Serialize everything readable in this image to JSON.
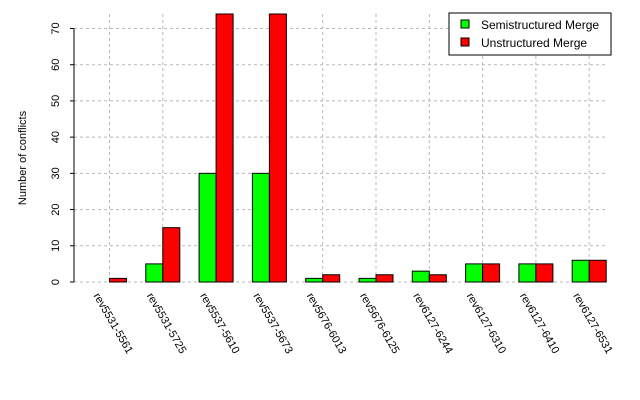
{
  "chart_data": {
    "type": "bar",
    "categories": [
      "rev5531-5561",
      "rev5531-5725",
      "rev5537-5610",
      "rev5537-5673",
      "rev5676-6013",
      "rev5676-6125",
      "rev6127-6244",
      "rev6127-6310",
      "rev6127-6410",
      "rev6127-6531"
    ],
    "series": [
      {
        "name": "Semistructured Merge",
        "color": "#00ff00",
        "values": [
          0,
          5,
          30,
          30,
          1,
          1,
          3,
          5,
          5,
          6
        ]
      },
      {
        "name": "Unstructured Merge",
        "color": "#ff0000",
        "values": [
          1,
          15,
          74,
          74,
          2,
          2,
          2,
          5,
          5,
          6
        ]
      }
    ],
    "ylabel": "Number of conflicts",
    "xlabel": "",
    "ylim": [
      0,
      74
    ],
    "yticks": [
      0,
      10,
      20,
      30,
      40,
      50,
      60,
      70
    ],
    "grid": true,
    "legend_position": "top-right",
    "x_tick_rotation": "rotated-clockwise"
  }
}
